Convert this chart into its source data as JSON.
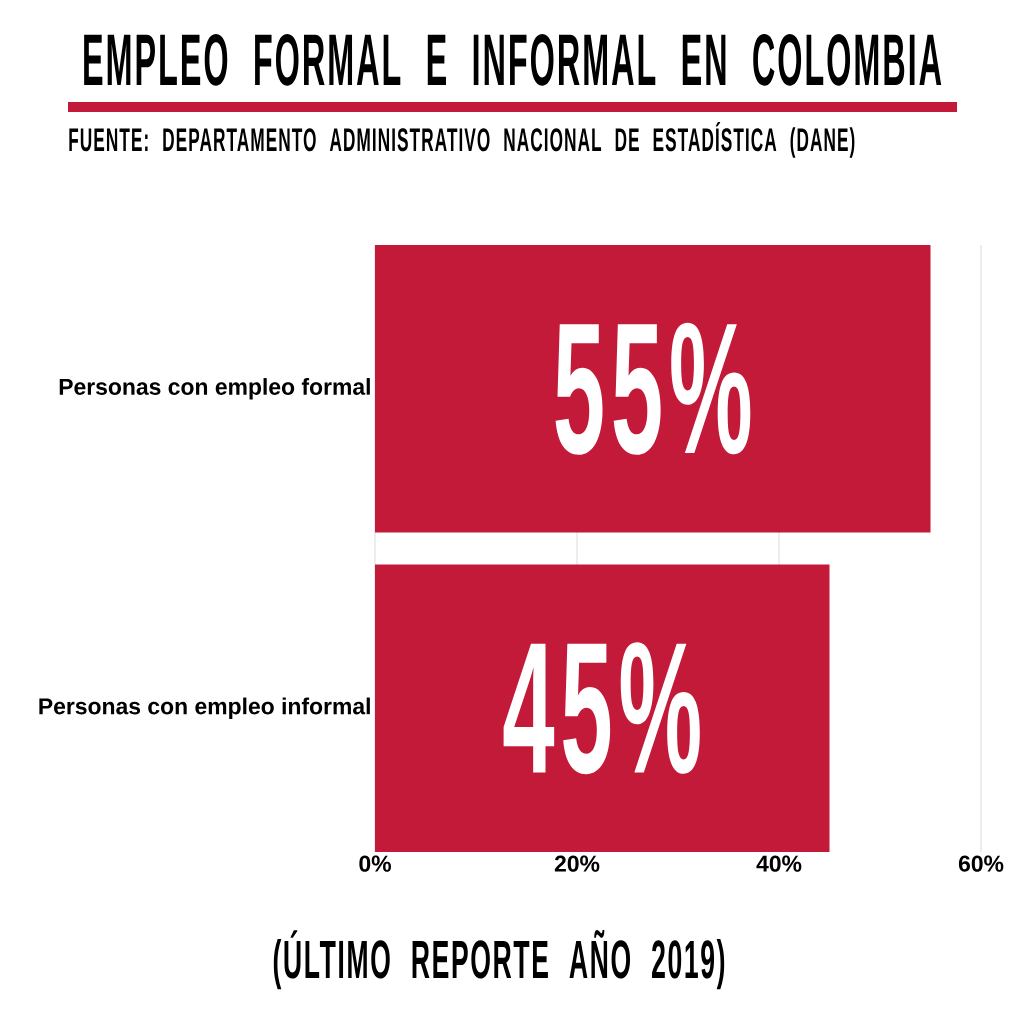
{
  "chart_data": {
    "type": "bar",
    "orientation": "horizontal",
    "title": "EMPLEO FORMAL E INFORMAL EN COLOMBIA",
    "annotations": [
      "FUENTE: DEPARTAMENTO ADMINISTRATIVO NACIONAL DE ESTADÍSTICA (DANE)",
      "(ÚLTIMO REPORTE AÑO 2019)"
    ],
    "categories": [
      "Personas con empleo formal",
      "Personas con empleo informal"
    ],
    "values": [
      55,
      45
    ],
    "color": "#c41a3a",
    "value_labels": [
      "55%",
      "45%"
    ],
    "xlim": [
      0,
      60
    ],
    "xticks": [
      {
        "value": 0,
        "label": "0%"
      },
      {
        "value": 20,
        "label": "20%"
      },
      {
        "value": 40,
        "label": "40%"
      },
      {
        "value": 60,
        "label": "60%"
      }
    ],
    "grid": "x"
  }
}
